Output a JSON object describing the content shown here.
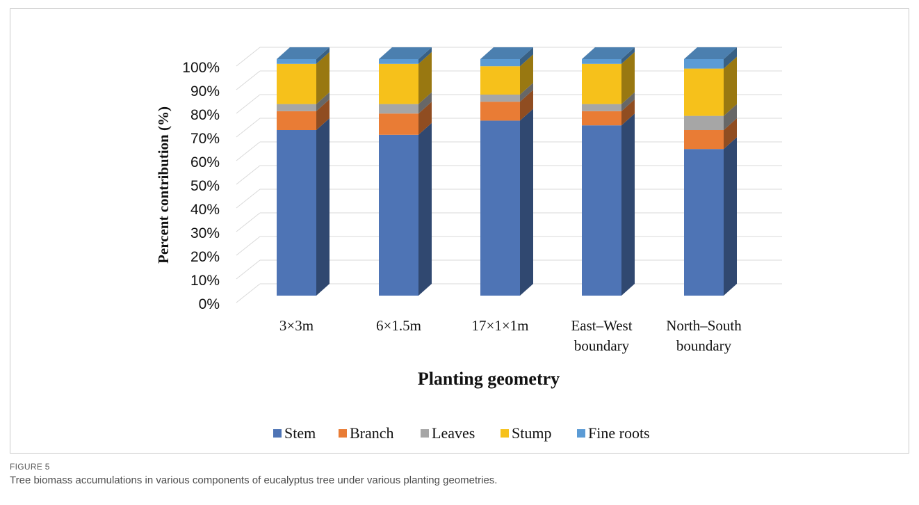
{
  "figure": {
    "label": "FIGURE 5",
    "caption": "Tree biomass accumulations in various components of eucalyptus tree under various planting geometries."
  },
  "chart_data": {
    "type": "bar",
    "stacked": true,
    "three_d": true,
    "percent_stacked": true,
    "title": "",
    "xlabel": "Planting geometry",
    "ylabel": "Percent contribution  (%)",
    "ylim": [
      0,
      100
    ],
    "y_ticks": [
      "0%",
      "10%",
      "20%",
      "30%",
      "40%",
      "50%",
      "60%",
      "70%",
      "80%",
      "90%",
      "100%"
    ],
    "grid": true,
    "legend_position": "bottom",
    "categories": [
      "3×3m",
      "6×1.5m",
      "17×1×1m",
      "East–West boundary",
      "North–South boundary"
    ],
    "category_lines": [
      [
        "3×3m"
      ],
      [
        "6×1.5m"
      ],
      [
        "17×1×1m"
      ],
      [
        "East–West",
        "boundary"
      ],
      [
        "North–South",
        "boundary"
      ]
    ],
    "series": [
      {
        "name": "Stem",
        "color": "#4e74b5",
        "values": [
          70,
          68,
          74,
          72,
          62
        ]
      },
      {
        "name": "Branch",
        "color": "#e97c35",
        "values": [
          8,
          9,
          8,
          6,
          8
        ]
      },
      {
        "name": "Leaves",
        "color": "#a6a6a6",
        "values": [
          3,
          4,
          3,
          3,
          6
        ]
      },
      {
        "name": "Stump",
        "color": "#f6c11b",
        "values": [
          17,
          17,
          12,
          17,
          20
        ]
      },
      {
        "name": "Fine roots",
        "color": "#5b9bd5",
        "values": [
          2,
          2,
          3,
          2,
          4
        ]
      }
    ]
  }
}
